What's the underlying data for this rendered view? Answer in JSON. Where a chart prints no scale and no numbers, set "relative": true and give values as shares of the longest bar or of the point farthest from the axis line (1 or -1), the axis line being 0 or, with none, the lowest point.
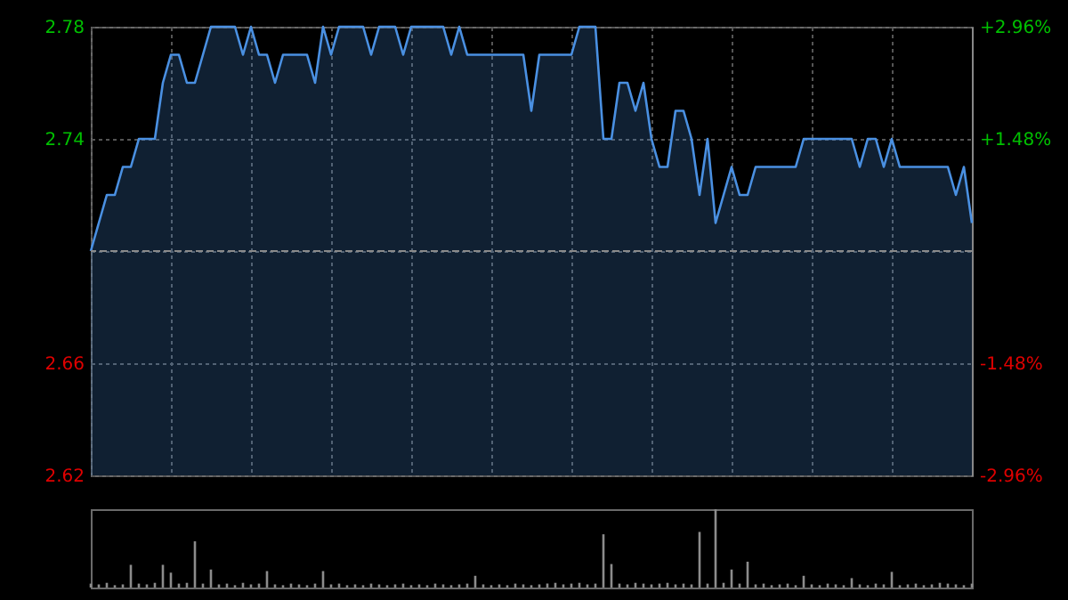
{
  "chart_data": [
    {
      "type": "area",
      "categories": [
        null,
        null,
        null,
        null,
        null,
        null,
        null,
        null,
        null,
        null,
        null,
        null,
        null,
        null,
        null,
        null,
        null,
        null,
        null,
        null,
        null,
        null,
        null,
        null,
        null,
        null,
        null,
        null,
        null,
        null,
        null,
        null,
        null,
        null,
        null,
        null,
        null,
        null,
        null,
        null,
        null,
        null,
        null,
        null,
        null,
        null,
        null,
        null,
        null,
        null,
        null,
        null,
        null,
        null,
        null,
        null,
        null,
        null,
        null,
        null,
        null,
        null,
        null,
        null,
        null,
        null,
        null,
        null,
        null,
        null,
        null,
        null,
        null,
        null,
        null,
        null,
        null,
        null,
        null,
        null,
        null,
        null,
        null,
        null,
        null,
        null,
        null,
        null,
        null,
        null,
        null,
        null,
        null,
        null,
        null,
        null,
        null,
        null,
        null,
        null,
        null,
        null,
        null,
        null,
        null,
        null,
        null,
        null,
        null,
        null,
        null
      ],
      "series": [
        {
          "color": "#4a90e2",
          "values": [
            2.7,
            2.71,
            2.72,
            2.72,
            2.73,
            2.73,
            2.74,
            2.74,
            2.74,
            2.76,
            2.77,
            2.77,
            2.76,
            2.76,
            2.77,
            2.78,
            2.78,
            2.78,
            2.78,
            2.77,
            2.78,
            2.77,
            2.77,
            2.76,
            2.77,
            2.77,
            2.77,
            2.77,
            2.76,
            2.78,
            2.77,
            2.78,
            2.78,
            2.78,
            2.78,
            2.77,
            2.78,
            2.78,
            2.78,
            2.77,
            2.78,
            2.78,
            2.78,
            2.78,
            2.78,
            2.77,
            2.78,
            2.77,
            2.77,
            2.77,
            2.77,
            2.77,
            2.77,
            2.77,
            2.77,
            2.75,
            2.77,
            2.77,
            2.77,
            2.77,
            2.77,
            2.78,
            2.78,
            2.78,
            2.74,
            2.74,
            2.76,
            2.76,
            2.75,
            2.76,
            2.74,
            2.73,
            2.73,
            2.75,
            2.75,
            2.74,
            2.72,
            2.74,
            2.71,
            2.72,
            2.73,
            2.72,
            2.72,
            2.73,
            2.73,
            2.73,
            2.73,
            2.73,
            2.73,
            2.74,
            2.74,
            2.74,
            2.74,
            2.74,
            2.74,
            2.74,
            2.73,
            2.74,
            2.74,
            2.73,
            2.74,
            2.73,
            2.73,
            2.73,
            2.73,
            2.73,
            2.73,
            2.73,
            2.72,
            2.73,
            2.71
          ]
        }
      ],
      "ylim": [
        2.62,
        2.78
      ],
      "yticks": [
        2.62,
        2.66,
        {
          "value": 2.7,
          "label": null
        },
        2.74,
        2.78
      ],
      "y2lim": [
        -2.96,
        2.96
      ],
      "y2ticks": [
        {
          "value": -2.96,
          "label": "-2.96%"
        },
        {
          "value": -1.48,
          "label": "-1.48%"
        },
        {
          "value": 0,
          "label": null
        },
        {
          "value": 1.48,
          "label": "+1.48%"
        },
        {
          "value": 2.96,
          "label": "+2.96%"
        }
      ],
      "ref_lines": [
        {
          "axis": "y",
          "value": 2.7,
          "line_style": "dashed",
          "color": "#8a8a8a"
        }
      ],
      "grid": true
    },
    {
      "type": "bar",
      "relative": true,
      "color": "#8c8c8c",
      "categories": [
        null,
        null,
        null,
        null,
        null,
        null,
        null,
        null,
        null,
        null,
        null,
        null,
        null,
        null,
        null,
        null,
        null,
        null,
        null,
        null,
        null,
        null,
        null,
        null,
        null,
        null,
        null,
        null,
        null,
        null,
        null,
        null,
        null,
        null,
        null,
        null,
        null,
        null,
        null,
        null,
        null,
        null,
        null,
        null,
        null,
        null,
        null,
        null,
        null,
        null,
        null,
        null,
        null,
        null,
        null,
        null,
        null,
        null,
        null,
        null,
        null,
        null,
        null,
        null,
        null,
        null,
        null,
        null,
        null,
        null,
        null,
        null,
        null,
        null,
        null,
        null,
        null,
        null,
        null,
        null,
        null,
        null,
        null,
        null,
        null,
        null,
        null,
        null,
        null,
        null,
        null,
        null,
        null,
        null,
        null,
        null,
        null,
        null,
        null,
        null,
        null,
        null,
        null,
        null,
        null,
        null,
        null,
        null,
        null,
        null,
        null
      ],
      "values": [
        0.05,
        0.04,
        0.06,
        0.03,
        0.04,
        0.29,
        0.05,
        0.04,
        0.06,
        0.29,
        0.19,
        0.05,
        0.06,
        0.59,
        0.05,
        0.23,
        0.04,
        0.05,
        0.03,
        0.06,
        0.04,
        0.05,
        0.21,
        0.04,
        0.03,
        0.05,
        0.04,
        0.03,
        0.05,
        0.21,
        0.04,
        0.05,
        0.03,
        0.04,
        0.03,
        0.05,
        0.04,
        0.03,
        0.04,
        0.05,
        0.03,
        0.04,
        0.03,
        0.05,
        0.04,
        0.03,
        0.04,
        0.05,
        0.15,
        0.04,
        0.03,
        0.04,
        0.03,
        0.05,
        0.04,
        0.03,
        0.04,
        0.05,
        0.06,
        0.04,
        0.05,
        0.06,
        0.04,
        0.05,
        0.68,
        0.3,
        0.05,
        0.04,
        0.06,
        0.05,
        0.04,
        0.05,
        0.06,
        0.04,
        0.05,
        0.04,
        0.71,
        0.05,
        1.0,
        0.06,
        0.23,
        0.05,
        0.33,
        0.04,
        0.05,
        0.03,
        0.04,
        0.05,
        0.03,
        0.15,
        0.04,
        0.03,
        0.05,
        0.04,
        0.03,
        0.12,
        0.04,
        0.03,
        0.05,
        0.04,
        0.2,
        0.03,
        0.04,
        0.05,
        0.03,
        0.04,
        0.06,
        0.05,
        0.04,
        0.03,
        0.05
      ]
    }
  ]
}
